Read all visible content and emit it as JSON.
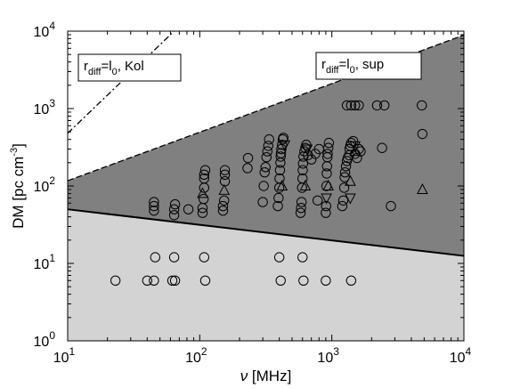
{
  "chart_data": {
    "type": "scatter",
    "title": "",
    "x_scale": "log",
    "y_scale": "log",
    "xlim": [
      10,
      10000
    ],
    "ylim": [
      1,
      10000
    ],
    "x_ticks": [
      {
        "base": "10",
        "exp": "1",
        "value": 10
      },
      {
        "base": "10",
        "exp": "2",
        "value": 100
      },
      {
        "base": "10",
        "exp": "3",
        "value": 1000
      },
      {
        "base": "10",
        "exp": "4",
        "value": 10000
      }
    ],
    "y_ticks": [
      {
        "base": "10",
        "exp": "0",
        "value": 1
      },
      {
        "base": "10",
        "exp": "1",
        "value": 10
      },
      {
        "base": "10",
        "exp": "2",
        "value": 100
      },
      {
        "base": "10",
        "exp": "3",
        "value": 1000
      },
      {
        "base": "10",
        "exp": "4",
        "value": 10000
      }
    ],
    "xlabel": {
      "symbol": "ν",
      "unit": " [MHz]"
    },
    "ylabel": {
      "main": "DM [pc cm",
      "sup": "-3",
      "end": "]"
    },
    "grid": false,
    "colors": {
      "dark_region": "#808080",
      "light_region": "#d3d3d3",
      "background": "#ffffff",
      "markers": "#000000"
    },
    "regions": [
      {
        "name": "light",
        "color": "#d3d3d3",
        "lower_line": [
          [
            10,
            1
          ],
          [
            10000,
            1
          ]
        ],
        "upper_line": [
          [
            10,
            50
          ],
          [
            10000,
            12.5
          ]
        ]
      },
      {
        "name": "dark",
        "color": "#808080",
        "lower_line": [
          [
            10,
            50
          ],
          [
            10000,
            12.5
          ]
        ],
        "upper_line": [
          [
            10,
            117
          ],
          [
            10000,
            8900
          ]
        ]
      }
    ],
    "lines": [
      {
        "style": "solid",
        "points": [
          [
            10,
            50
          ],
          [
            10000,
            12.5
          ]
        ]
      },
      {
        "style": "dashed",
        "points": [
          [
            10,
            117
          ],
          [
            10000,
            8900
          ]
        ]
      },
      {
        "style": "dashdot",
        "points": [
          [
            10,
            480
          ],
          [
            64,
            10000
          ]
        ]
      }
    ],
    "annotations": [
      {
        "base": "r",
        "sub1": "diff",
        "mid": "=l",
        "sub2": "0",
        "end": ", Kol"
      },
      {
        "base": "r",
        "sub1": "diff",
        "mid": "=l",
        "sub2": "0",
        "end": ", sup"
      }
    ],
    "series": [
      {
        "marker": "circle",
        "points": [
          [
            23,
            6
          ],
          [
            40,
            6
          ],
          [
            45,
            6
          ],
          [
            46,
            12
          ],
          [
            62,
            6
          ],
          [
            64,
            12
          ],
          [
            65,
            6
          ],
          [
            108,
            12
          ],
          [
            110,
            6
          ],
          [
            400,
            12
          ],
          [
            410,
            6
          ],
          [
            600,
            12
          ],
          [
            610,
            6
          ],
          [
            900,
            6
          ],
          [
            1400,
            6
          ],
          [
            45,
            48
          ],
          [
            45,
            55
          ],
          [
            45,
            62
          ],
          [
            64,
            42
          ],
          [
            64,
            50
          ],
          [
            65,
            58
          ],
          [
            82,
            50
          ],
          [
            105,
            45
          ],
          [
            105,
            52
          ],
          [
            107,
            68
          ],
          [
            108,
            95
          ],
          [
            108,
            125
          ],
          [
            108,
            140
          ],
          [
            110,
            160
          ],
          [
            150,
            48
          ],
          [
            150,
            55
          ],
          [
            153,
            65
          ],
          [
            155,
            115
          ],
          [
            155,
            140
          ],
          [
            155,
            160
          ],
          [
            230,
            170
          ],
          [
            232,
            230
          ],
          [
            300,
            62
          ],
          [
            305,
            100
          ],
          [
            310,
            150
          ],
          [
            315,
            175
          ],
          [
            320,
            235
          ],
          [
            325,
            280
          ],
          [
            330,
            330
          ],
          [
            335,
            400
          ],
          [
            390,
            55
          ],
          [
            395,
            70
          ],
          [
            400,
            95
          ],
          [
            402,
            125
          ],
          [
            405,
            160
          ],
          [
            408,
            200
          ],
          [
            410,
            240
          ],
          [
            412,
            265
          ],
          [
            415,
            300
          ],
          [
            420,
            340
          ],
          [
            425,
            400
          ],
          [
            430,
            420
          ],
          [
            580,
            45
          ],
          [
            585,
            52
          ],
          [
            590,
            62
          ],
          [
            595,
            95
          ],
          [
            600,
            125
          ],
          [
            602,
            160
          ],
          [
            605,
            195
          ],
          [
            610,
            240
          ],
          [
            620,
            280
          ],
          [
            630,
            310
          ],
          [
            640,
            340
          ],
          [
            660,
            250
          ],
          [
            700,
            220
          ],
          [
            750,
            260
          ],
          [
            800,
            300
          ],
          [
            780,
            65
          ],
          [
            900,
            45
          ],
          [
            905,
            55
          ],
          [
            910,
            100
          ],
          [
            915,
            145
          ],
          [
            920,
            180
          ],
          [
            925,
            235
          ],
          [
            930,
            260
          ],
          [
            940,
            310
          ],
          [
            950,
            360
          ],
          [
            1200,
            55
          ],
          [
            1220,
            65
          ],
          [
            1240,
            95
          ],
          [
            1250,
            130
          ],
          [
            1260,
            150
          ],
          [
            1280,
            180
          ],
          [
            1300,
            210
          ],
          [
            1320,
            230
          ],
          [
            1350,
            250
          ],
          [
            1360,
            300
          ],
          [
            1380,
            330
          ],
          [
            1400,
            360
          ],
          [
            1450,
            380
          ],
          [
            1500,
            260
          ],
          [
            1550,
            230
          ],
          [
            1600,
            300
          ],
          [
            1650,
            280
          ],
          [
            1300,
            1100
          ],
          [
            1400,
            1100
          ],
          [
            1500,
            1100
          ],
          [
            1600,
            1100
          ],
          [
            2200,
            1100
          ],
          [
            2500,
            1100
          ],
          [
            2400,
            310
          ],
          [
            2800,
            55
          ],
          [
            4800,
            1100
          ],
          [
            4850,
            470
          ]
        ]
      },
      {
        "marker": "triangle-up",
        "points": [
          [
            105,
            80
          ],
          [
            153,
            88
          ],
          [
            420,
            100
          ],
          [
            630,
            100
          ],
          [
            940,
            100
          ],
          [
            1380,
            115
          ],
          [
            1500,
            280
          ],
          [
            4850,
            90
          ]
        ]
      },
      {
        "marker": "triangle-down",
        "points": [
          [
            440,
            340
          ],
          [
            650,
            300
          ],
          [
            910,
            70
          ],
          [
            1380,
            70
          ],
          [
            1500,
            330
          ]
        ]
      }
    ]
  }
}
